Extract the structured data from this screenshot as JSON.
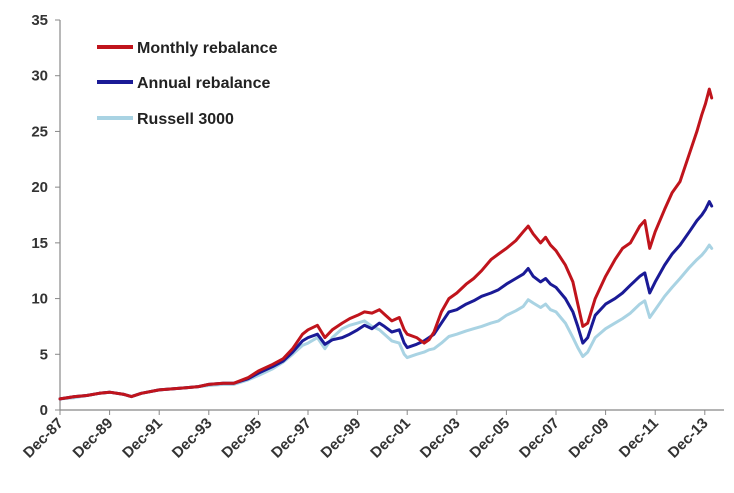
{
  "chart_data": {
    "type": "line",
    "title": "",
    "xlabel": "",
    "ylabel": "",
    "ylim": [
      0,
      35
    ],
    "yticks": [
      0,
      5,
      10,
      15,
      20,
      25,
      30,
      35
    ],
    "xticks": [
      "Dec-87",
      "Dec-89",
      "Dec-91",
      "Dec-93",
      "Dec-95",
      "Dec-97",
      "Dec-99",
      "Dec-01",
      "Dec-03",
      "Dec-05",
      "Dec-07",
      "Dec-09",
      "Dec-11",
      "Dec-13"
    ],
    "xlim": [
      1987.92,
      2014.25
    ],
    "grid": false,
    "legend_position": "top-left",
    "series": [
      {
        "name": "Monthly rebalance",
        "color": "#c0141c",
        "x": [
          1987.92,
          1988.5,
          1989.0,
          1989.5,
          1989.92,
          1990.5,
          1990.8,
          1991.2,
          1991.92,
          1992.5,
          1993.0,
          1993.5,
          1993.92,
          1994.5,
          1994.92,
          1995.5,
          1995.92,
          1996.5,
          1996.92,
          1997.3,
          1997.7,
          1997.92,
          1998.3,
          1998.6,
          1998.9,
          1999.3,
          1999.6,
          1999.92,
          2000.2,
          2000.5,
          2000.8,
          2001.0,
          2001.3,
          2001.6,
          2001.8,
          2001.92,
          2002.3,
          2002.6,
          2002.8,
          2003.0,
          2003.3,
          2003.6,
          2003.92,
          2004.3,
          2004.6,
          2004.92,
          2005.3,
          2005.6,
          2005.92,
          2006.3,
          2006.6,
          2006.8,
          2007.0,
          2007.3,
          2007.5,
          2007.7,
          2007.92,
          2008.3,
          2008.6,
          2008.8,
          2009.0,
          2009.2,
          2009.5,
          2009.92,
          2010.3,
          2010.6,
          2010.92,
          2011.3,
          2011.5,
          2011.7,
          2011.92,
          2012.3,
          2012.6,
          2012.92,
          2013.3,
          2013.6,
          2013.8,
          2013.95,
          2014.1,
          2014.2
        ],
        "values": [
          1.0,
          1.2,
          1.3,
          1.5,
          1.6,
          1.4,
          1.2,
          1.5,
          1.8,
          1.9,
          2.0,
          2.1,
          2.3,
          2.4,
          2.4,
          2.9,
          3.5,
          4.1,
          4.6,
          5.5,
          6.8,
          7.2,
          7.6,
          6.5,
          7.2,
          7.8,
          8.2,
          8.5,
          8.8,
          8.7,
          9.0,
          8.6,
          8.0,
          8.3,
          7.2,
          6.8,
          6.5,
          6.0,
          6.3,
          7.0,
          8.8,
          10.0,
          10.5,
          11.3,
          11.8,
          12.5,
          13.5,
          14.0,
          14.5,
          15.2,
          16.0,
          16.5,
          15.8,
          15.0,
          15.5,
          14.8,
          14.3,
          13.0,
          11.5,
          9.5,
          7.5,
          7.8,
          10.0,
          12.0,
          13.5,
          14.5,
          15.0,
          16.5,
          17.0,
          14.5,
          16.0,
          18.0,
          19.5,
          20.5,
          23.0,
          25.0,
          26.5,
          27.5,
          28.8,
          28.0
        ]
      },
      {
        "name": "Annual rebalance",
        "color": "#1a1a96",
        "x": [
          1987.92,
          1988.5,
          1989.0,
          1989.5,
          1989.92,
          1990.5,
          1990.8,
          1991.2,
          1991.92,
          1992.5,
          1993.0,
          1993.5,
          1993.92,
          1994.5,
          1994.92,
          1995.5,
          1995.92,
          1996.5,
          1996.92,
          1997.3,
          1997.7,
          1997.92,
          1998.3,
          1998.6,
          1998.9,
          1999.3,
          1999.6,
          1999.92,
          2000.2,
          2000.5,
          2000.8,
          2001.0,
          2001.3,
          2001.6,
          2001.8,
          2001.92,
          2002.3,
          2002.6,
          2002.8,
          2003.0,
          2003.3,
          2003.6,
          2003.92,
          2004.3,
          2004.6,
          2004.92,
          2005.3,
          2005.6,
          2005.92,
          2006.3,
          2006.6,
          2006.8,
          2007.0,
          2007.3,
          2007.5,
          2007.7,
          2007.92,
          2008.3,
          2008.6,
          2008.8,
          2009.0,
          2009.2,
          2009.5,
          2009.92,
          2010.3,
          2010.6,
          2010.92,
          2011.3,
          2011.5,
          2011.7,
          2011.92,
          2012.3,
          2012.6,
          2012.92,
          2013.3,
          2013.6,
          2013.8,
          2013.95,
          2014.1,
          2014.2
        ],
        "values": [
          1.0,
          1.2,
          1.3,
          1.5,
          1.6,
          1.4,
          1.2,
          1.5,
          1.8,
          1.9,
          2.0,
          2.1,
          2.3,
          2.4,
          2.4,
          2.8,
          3.3,
          3.9,
          4.4,
          5.2,
          6.2,
          6.5,
          6.8,
          5.9,
          6.3,
          6.5,
          6.8,
          7.2,
          7.6,
          7.3,
          7.8,
          7.5,
          7.0,
          7.2,
          6.0,
          5.6,
          5.9,
          6.2,
          6.5,
          6.8,
          7.8,
          8.8,
          9.0,
          9.5,
          9.8,
          10.2,
          10.5,
          10.8,
          11.3,
          11.8,
          12.2,
          12.7,
          12.0,
          11.5,
          11.8,
          11.3,
          11.0,
          10.0,
          8.8,
          7.5,
          6.0,
          6.5,
          8.5,
          9.5,
          10.0,
          10.5,
          11.2,
          12.0,
          12.3,
          10.5,
          11.5,
          13.0,
          14.0,
          14.8,
          16.0,
          17.0,
          17.5,
          18.0,
          18.7,
          18.3
        ]
      },
      {
        "name": "Russell 3000",
        "color": "#a9d3e3",
        "x": [
          1987.92,
          1988.5,
          1989.0,
          1989.5,
          1989.92,
          1990.5,
          1990.8,
          1991.2,
          1991.92,
          1992.5,
          1993.0,
          1993.5,
          1993.92,
          1994.5,
          1994.92,
          1995.5,
          1995.92,
          1996.5,
          1996.92,
          1997.3,
          1997.7,
          1997.92,
          1998.3,
          1998.6,
          1998.9,
          1999.3,
          1999.6,
          1999.92,
          2000.2,
          2000.5,
          2000.8,
          2001.0,
          2001.3,
          2001.6,
          2001.8,
          2001.92,
          2002.3,
          2002.6,
          2002.8,
          2003.0,
          2003.3,
          2003.6,
          2003.92,
          2004.3,
          2004.6,
          2004.92,
          2005.3,
          2005.6,
          2005.92,
          2006.3,
          2006.6,
          2006.8,
          2007.0,
          2007.3,
          2007.5,
          2007.7,
          2007.92,
          2008.3,
          2008.6,
          2008.8,
          2009.0,
          2009.2,
          2009.5,
          2009.92,
          2010.3,
          2010.6,
          2010.92,
          2011.3,
          2011.5,
          2011.7,
          2011.92,
          2012.3,
          2012.6,
          2012.92,
          2013.3,
          2013.6,
          2013.8,
          2013.95,
          2014.1,
          2014.2
        ],
        "values": [
          1.0,
          1.1,
          1.3,
          1.5,
          1.6,
          1.4,
          1.2,
          1.5,
          1.8,
          1.9,
          2.0,
          2.1,
          2.2,
          2.3,
          2.3,
          2.7,
          3.1,
          3.7,
          4.3,
          5.0,
          5.8,
          6.0,
          6.5,
          5.5,
          6.5,
          7.3,
          7.6,
          7.8,
          8.0,
          7.5,
          7.2,
          6.8,
          6.2,
          6.0,
          5.0,
          4.7,
          5.0,
          5.2,
          5.4,
          5.5,
          6.0,
          6.6,
          6.8,
          7.1,
          7.3,
          7.5,
          7.8,
          8.0,
          8.5,
          8.9,
          9.3,
          9.9,
          9.6,
          9.2,
          9.5,
          9.0,
          8.8,
          7.8,
          6.5,
          5.6,
          4.8,
          5.2,
          6.5,
          7.3,
          7.8,
          8.2,
          8.7,
          9.5,
          9.8,
          8.3,
          9.0,
          10.2,
          11.0,
          11.8,
          12.8,
          13.5,
          13.9,
          14.3,
          14.8,
          14.5
        ]
      }
    ]
  }
}
